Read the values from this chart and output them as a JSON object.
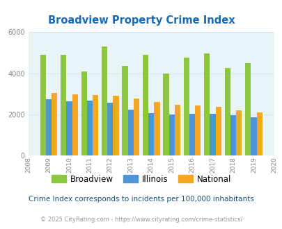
{
  "title": "Broadview Property Crime Index",
  "years": [
    2009,
    2010,
    2011,
    2012,
    2013,
    2014,
    2015,
    2016,
    2017,
    2018,
    2019
  ],
  "broadview": [
    4900,
    4900,
    4100,
    5300,
    4350,
    4900,
    4000,
    4750,
    4950,
    4250,
    4500
  ],
  "illinois": [
    2750,
    2650,
    2680,
    2570,
    2230,
    2070,
    2000,
    2050,
    2020,
    1950,
    1880
  ],
  "national": [
    3050,
    2980,
    2930,
    2900,
    2760,
    2620,
    2480,
    2440,
    2360,
    2190,
    2110
  ],
  "color_broadview": "#8dc63f",
  "color_illinois": "#4d94d9",
  "color_national": "#f5a623",
  "xlim": [
    2008,
    2020
  ],
  "ylim": [
    0,
    6000
  ],
  "yticks": [
    0,
    2000,
    4000,
    6000
  ],
  "background_color": "#e8f4f8",
  "title_color": "#1a6bb5",
  "subtitle": "Crime Index corresponds to incidents per 100,000 inhabitants",
  "footer": "© 2025 CityRating.com - https://www.cityrating.com/crime-statistics/",
  "subtitle_color": "#1a5276",
  "footer_color": "#999999",
  "bar_width": 0.28,
  "grid_color": "#d0e8ef"
}
